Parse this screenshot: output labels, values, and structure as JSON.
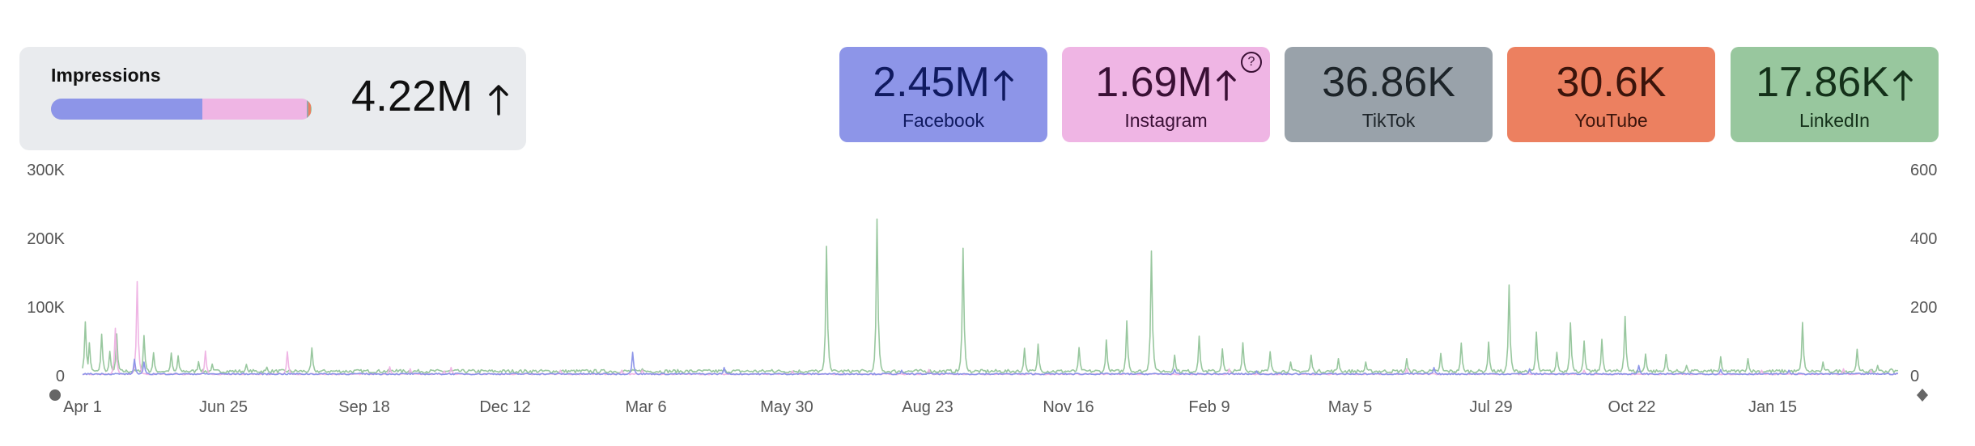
{
  "summary": {
    "label": "Impressions",
    "total": "4.22M",
    "trend": "up",
    "breakdown": [
      {
        "name": "Facebook",
        "share": 0.58,
        "color": "#8d95e8"
      },
      {
        "name": "Instagram",
        "share": 0.4,
        "color": "#efb5e4"
      },
      {
        "name": "TikTok",
        "share": 0.009,
        "color": "#9aa3ab"
      },
      {
        "name": "YouTube",
        "share": 0.007,
        "color": "#ec8060"
      },
      {
        "name": "LinkedIn",
        "share": 0.004,
        "color": "#98c79e"
      }
    ]
  },
  "cards": [
    {
      "value": "2.45M",
      "name": "Facebook",
      "trend": "up",
      "bg": "#8d95e8",
      "fg": "#101a60"
    },
    {
      "value": "1.69M",
      "name": "Instagram",
      "trend": "up",
      "bg": "#efb5e4",
      "fg": "#3a1035",
      "help": "?"
    },
    {
      "value": "36.86K",
      "name": "TikTok",
      "trend": "",
      "bg": "#99a2aa",
      "fg": "#1d2429"
    },
    {
      "value": "30.6K",
      "name": "YouTube",
      "trend": "",
      "bg": "#ec8060",
      "fg": "#3b140b"
    },
    {
      "value": "17.86K",
      "name": "LinkedIn",
      "trend": "up",
      "bg": "#98c79e",
      "fg": "#143019"
    }
  ],
  "chart_data": {
    "type": "line",
    "title": "Impressions",
    "left_axis": {
      "ticks": [
        "0",
        "100K",
        "200K",
        "300K"
      ],
      "range": [
        0,
        300000
      ]
    },
    "right_axis": {
      "ticks": [
        "0",
        "200",
        "400",
        "600"
      ],
      "range": [
        0,
        600
      ]
    },
    "x_ticks": [
      "Apr 1",
      "Jun 25",
      "Sep 18",
      "Dec 12",
      "Mar 6",
      "May 30",
      "Aug 23",
      "Nov 16",
      "Feb 9",
      "May 5",
      "Jul 29",
      "Oct 22",
      "Jan 15"
    ],
    "days": 1330,
    "series": [
      {
        "name": "LinkedIn",
        "axis": "right",
        "color": "#98c79e",
        "baseline": 8,
        "noise": 10,
        "spikes": [
          [
            2,
            157
          ],
          [
            5,
            96
          ],
          [
            14,
            121
          ],
          [
            20,
            71
          ],
          [
            25,
            122
          ],
          [
            45,
            117
          ],
          [
            52,
            67
          ],
          [
            65,
            66
          ],
          [
            70,
            58
          ],
          [
            85,
            41
          ],
          [
            95,
            34
          ],
          [
            120,
            33
          ],
          [
            135,
            25
          ],
          [
            168,
            81
          ],
          [
            230,
            18
          ],
          [
            300,
            15
          ],
          [
            350,
            14
          ],
          [
            410,
            20
          ],
          [
            450,
            13
          ],
          [
            505,
            18
          ],
          [
            545,
            377
          ],
          [
            582,
            456
          ],
          [
            645,
            371
          ],
          [
            690,
            80
          ],
          [
            700,
            92
          ],
          [
            730,
            82
          ],
          [
            750,
            104
          ],
          [
            765,
            160
          ],
          [
            783,
            363
          ],
          [
            800,
            60
          ],
          [
            818,
            115
          ],
          [
            835,
            78
          ],
          [
            850,
            96
          ],
          [
            870,
            70
          ],
          [
            885,
            40
          ],
          [
            900,
            60
          ],
          [
            920,
            50
          ],
          [
            940,
            40
          ],
          [
            970,
            50
          ],
          [
            995,
            65
          ],
          [
            1010,
            95
          ],
          [
            1030,
            98
          ],
          [
            1045,
            264
          ],
          [
            1065,
            127
          ],
          [
            1080,
            68
          ],
          [
            1090,
            154
          ],
          [
            1100,
            101
          ],
          [
            1113,
            106
          ],
          [
            1130,
            173
          ],
          [
            1145,
            63
          ],
          [
            1160,
            62
          ],
          [
            1175,
            30
          ],
          [
            1200,
            55
          ],
          [
            1220,
            50
          ],
          [
            1260,
            155
          ],
          [
            1275,
            40
          ],
          [
            1300,
            77
          ],
          [
            1315,
            30
          ],
          [
            1325,
            20
          ]
        ]
      },
      {
        "name": "Instagram",
        "axis": "left",
        "color": "#efb5e4",
        "baseline": 1500,
        "noise": 1500,
        "spikes": [
          [
            24,
            69000
          ],
          [
            40,
            137000
          ],
          [
            90,
            36000
          ],
          [
            150,
            35000
          ],
          [
            225,
            13000
          ],
          [
            240,
            10000
          ],
          [
            270,
            12000
          ],
          [
            265,
            7000
          ],
          [
            350,
            8000
          ],
          [
            395,
            8000
          ],
          [
            410,
            8000
          ],
          [
            520,
            7000
          ],
          [
            620,
            9000
          ],
          [
            840,
            10000
          ],
          [
            970,
            10000
          ],
          [
            1100,
            8000
          ],
          [
            1230,
            8000
          ],
          [
            1290,
            10000
          ],
          [
            1310,
            8000
          ]
        ]
      },
      {
        "name": "Facebook",
        "axis": "left",
        "color": "#8d95e8",
        "baseline": 1500,
        "noise": 2200,
        "spikes": [
          [
            38,
            24000
          ],
          [
            45,
            20000
          ],
          [
            403,
            34000
          ],
          [
            470,
            12000
          ],
          [
            600,
            8000
          ],
          [
            800,
            9000
          ],
          [
            860,
            7000
          ],
          [
            990,
            12000
          ],
          [
            1060,
            10000
          ],
          [
            1140,
            15000
          ],
          [
            1200,
            9000
          ],
          [
            1250,
            8000
          ]
        ]
      }
    ]
  }
}
